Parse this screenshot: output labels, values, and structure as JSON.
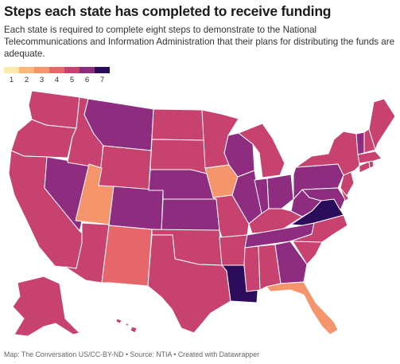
{
  "title": "Steps each state has completed to receive funding",
  "subtitle": "Each state is required to complete eight steps to demonstrate to the National Telecommunications and Information Administration that their plans for distributing the funds are adequate.",
  "legend": {
    "labels": [
      "1",
      "2",
      "3",
      "4",
      "5",
      "6",
      "7"
    ],
    "colors": [
      "#fde9a9",
      "#fbb87a",
      "#f5956c",
      "#e6676b",
      "#c8426f",
      "#8e2d80",
      "#2c0d5b"
    ]
  },
  "footer": "Map: The Conversation US/CC-BY-ND • Source: NTIA • Created with Datawrapper",
  "states": {
    "WA": 5,
    "OR": 5,
    "CA": 5,
    "ID": 5,
    "NV": 6,
    "MT": 6,
    "WY": 5,
    "UT": 3,
    "AZ": 5,
    "CO": 6,
    "NM": 4,
    "ND": 5,
    "SD": 5,
    "NE": 6,
    "KS": 6,
    "OK": 5,
    "TX": 5,
    "MN": 5,
    "IA": 3,
    "MO": 5,
    "AR": 5,
    "LA": 7,
    "WI": 6,
    "IL": 6,
    "MI": 5,
    "IN": 6,
    "OH": 6,
    "KY": 5,
    "TN": 6,
    "MS": 5,
    "AL": 5,
    "GA": 6,
    "FL": 3,
    "SC": 5,
    "NC": 5,
    "VA": 7,
    "WV": 6,
    "PA": 6,
    "NY": 5,
    "VT": 6,
    "NH": 5,
    "ME": 5,
    "MA": 5,
    "RI": 5,
    "CT": 5,
    "NJ": 5,
    "DE": 5,
    "MD": 6,
    "AK": 5,
    "HI": 5
  }
}
